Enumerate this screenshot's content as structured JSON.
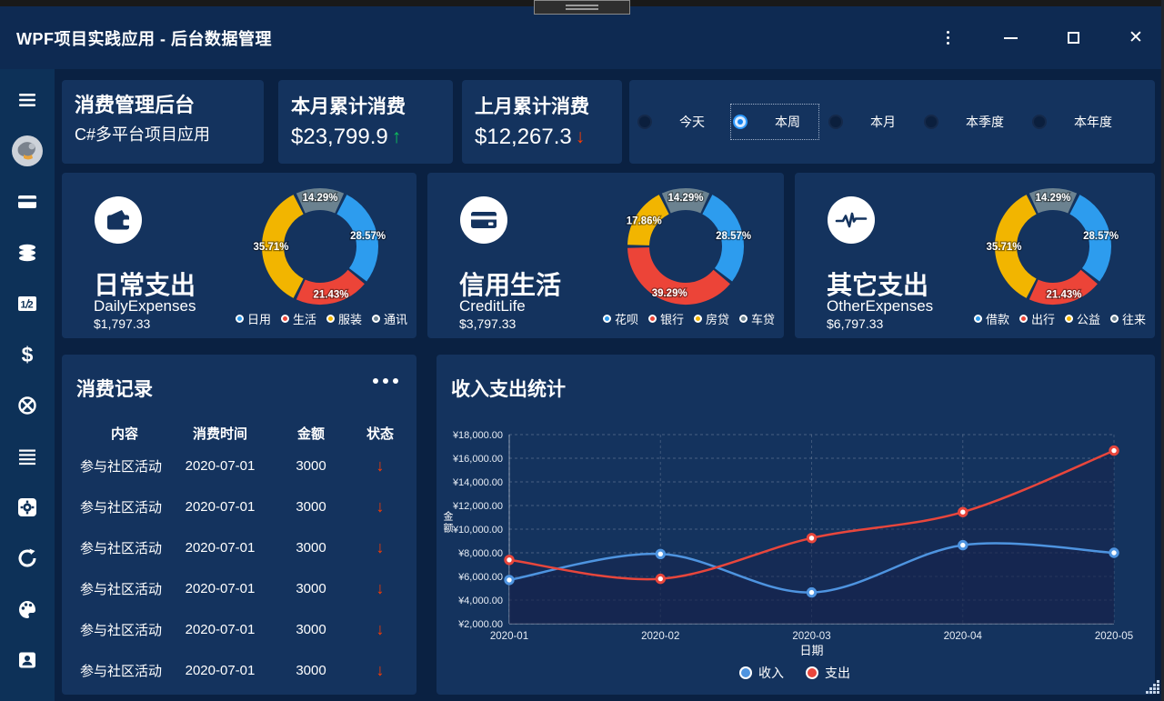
{
  "window": {
    "title": "WPF项目实践应用 - 后台数据管理",
    "controls": {
      "menu": "kebab-menu",
      "minimize": "minimize",
      "maximize": "maximize",
      "close": "close"
    }
  },
  "sidebar": {
    "items": [
      {
        "icon": "hamburger-menu-icon"
      },
      {
        "icon": "user-avatar"
      },
      {
        "icon": "bank-card-icon"
      },
      {
        "icon": "database-icon"
      },
      {
        "icon": "billing-icon"
      },
      {
        "icon": "dollar-icon"
      },
      {
        "icon": "atom-icon"
      },
      {
        "icon": "list-icon"
      },
      {
        "icon": "settings-icon"
      },
      {
        "icon": "sync-icon"
      },
      {
        "icon": "palette-icon"
      },
      {
        "icon": "contact-icon"
      }
    ]
  },
  "summary": {
    "brand": {
      "title": "消费管理后台",
      "subtitle": "C#多平台项目应用"
    },
    "current_month": {
      "label": "本月累计消费",
      "value": "$23,799.9",
      "trend": "up"
    },
    "previous_month": {
      "label": "上月累计消费",
      "value": "$12,267.3",
      "trend": "down"
    }
  },
  "period_filter": {
    "options": [
      "今天",
      "本周",
      "本月",
      "本季度",
      "本年度"
    ],
    "selected_index": 1
  },
  "expense_cards": [
    {
      "icon": "wallet-icon",
      "title": "日常支出",
      "subtitle": "DailyExpenses",
      "amount": "$1,797.33",
      "chart_index": 0
    },
    {
      "icon": "credit-card-icon",
      "title": "信用生活",
      "subtitle": "CreditLife",
      "amount": "$3,797.33",
      "chart_index": 1
    },
    {
      "icon": "pulse-icon",
      "title": "其它支出",
      "subtitle": "OtherExpenses",
      "amount": "$6,797.33",
      "chart_index": 2
    }
  ],
  "records_panel": {
    "title": "消费记录",
    "columns": [
      "内容",
      "消费时间",
      "金额",
      "状态"
    ],
    "rows": [
      {
        "content": "参与社区活动",
        "time": "2020-07-01",
        "amount": "3000",
        "status": "down"
      },
      {
        "content": "参与社区活动",
        "time": "2020-07-01",
        "amount": "3000",
        "status": "down"
      },
      {
        "content": "参与社区活动",
        "time": "2020-07-01",
        "amount": "3000",
        "status": "down"
      },
      {
        "content": "参与社区活动",
        "time": "2020-07-01",
        "amount": "3000",
        "status": "down"
      },
      {
        "content": "参与社区活动",
        "time": "2020-07-01",
        "amount": "3000",
        "status": "down"
      },
      {
        "content": "参与社区活动",
        "time": "2020-07-01",
        "amount": "3000",
        "status": "down"
      }
    ]
  },
  "stats_panel": {
    "title": "收入支出统计"
  },
  "chart_data": [
    {
      "id": "daily-expenses-donut",
      "type": "pie",
      "donut": true,
      "segments": [
        {
          "label": "通讯",
          "color": "gray",
          "value": 14.29
        },
        {
          "label": "日用",
          "color": "blue",
          "value": 28.57
        },
        {
          "label": "生活",
          "color": "red",
          "value": 21.43
        },
        {
          "label": "服装",
          "color": "yellow",
          "value": 35.71
        }
      ],
      "legend": [
        {
          "label": "日用",
          "color": "blue"
        },
        {
          "label": "生活",
          "color": "red"
        },
        {
          "label": "服装",
          "color": "yellow"
        },
        {
          "label": "通讯",
          "color": "gray"
        }
      ]
    },
    {
      "id": "credit-life-donut",
      "type": "pie",
      "donut": true,
      "segments": [
        {
          "label": "车贷",
          "color": "gray",
          "value": 14.29
        },
        {
          "label": "花呗",
          "color": "blue",
          "value": 28.57
        },
        {
          "label": "银行",
          "color": "red",
          "value": 39.29
        },
        {
          "label": "房贷",
          "color": "yellow",
          "value": 17.86
        }
      ],
      "legend": [
        {
          "label": "花呗",
          "color": "blue"
        },
        {
          "label": "银行",
          "color": "red"
        },
        {
          "label": "房贷",
          "color": "yellow"
        },
        {
          "label": "车贷",
          "color": "gray"
        }
      ]
    },
    {
      "id": "other-expenses-donut",
      "type": "pie",
      "donut": true,
      "segments": [
        {
          "label": "往来",
          "color": "gray",
          "value": 14.29
        },
        {
          "label": "借款",
          "color": "blue",
          "value": 28.57
        },
        {
          "label": "出行",
          "color": "red",
          "value": 21.43
        },
        {
          "label": "公益",
          "color": "yellow",
          "value": 35.71
        }
      ],
      "legend": [
        {
          "label": "借款",
          "color": "blue"
        },
        {
          "label": "出行",
          "color": "red"
        },
        {
          "label": "公益",
          "color": "yellow"
        },
        {
          "label": "往来",
          "color": "gray"
        }
      ]
    },
    {
      "id": "income-expense-line",
      "type": "line",
      "title": "收入支出统计",
      "categories": [
        "2020-01",
        "2020-02",
        "2020-03",
        "2020-04",
        "2020-05"
      ],
      "series": [
        {
          "name": "收入",
          "color": "line_blue",
          "values": [
            5700,
            7900,
            4650,
            8650,
            8000
          ]
        },
        {
          "name": "支出",
          "color": "line_red",
          "values": [
            7400,
            5800,
            9250,
            11450,
            16650
          ]
        }
      ],
      "xlabel": "日期",
      "ylabel": "金额",
      "ylim": [
        2000,
        18000
      ],
      "ytick_step": 2000,
      "y_prefix": "¥",
      "grid": true,
      "legend_position": "bottom",
      "smooth": true,
      "area": true
    }
  ],
  "colors": {
    "blue": "#2D9CEE",
    "red": "#EC4438",
    "yellow": "#F2B500",
    "gray": "#6B8290",
    "line_blue": "#4E94E0",
    "line_red": "#E8463C",
    "up_green": "#0DC15C",
    "down_orange": "#FF3C00"
  }
}
